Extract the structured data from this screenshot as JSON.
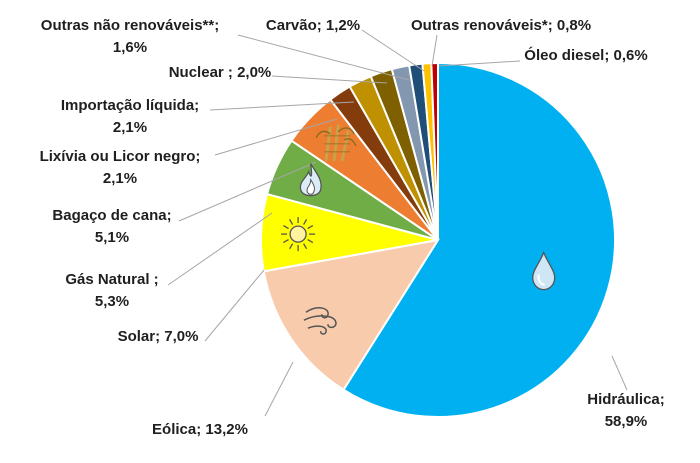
{
  "chart_data": {
    "type": "pie",
    "title": "",
    "legend": "none",
    "slices": [
      {
        "name": "Hidráulica",
        "value": 58.9,
        "label_lines": [
          "Hidráulica;",
          "58,9%"
        ],
        "color": "#00b0f0",
        "icon": "water-drop-icon"
      },
      {
        "name": "Eólica",
        "value": 13.2,
        "label_lines": [
          "Eólica; 13,2%"
        ],
        "color": "#f8cbad",
        "icon": "wind-icon"
      },
      {
        "name": "Solar",
        "value": 7.0,
        "label_lines": [
          "Solar; 7,0%"
        ],
        "color": "#ffff00",
        "icon": "sun-icon"
      },
      {
        "name": "Gás Natural",
        "value": 5.3,
        "label_lines": [
          "Gás Natural ;",
          "5,3%"
        ],
        "color": "#70ad47",
        "icon": "gas-flame-icon"
      },
      {
        "name": "Bagaço de cana",
        "value": 5.1,
        "label_lines": [
          "Bagaço de cana;",
          "5,1%"
        ],
        "color": "#ed7d31",
        "icon": "sugarcane-icon"
      },
      {
        "name": "Lixívia ou Licor negro",
        "value": 2.1,
        "label_lines": [
          "Lixívia ou Licor negro;",
          "2,1%"
        ],
        "color": "#843c0c",
        "icon": ""
      },
      {
        "name": "Importação líquida",
        "value": 2.1,
        "label_lines": [
          "Importação líquida;",
          "2,1%"
        ],
        "color": "#bf9000",
        "icon": ""
      },
      {
        "name": "Nuclear",
        "value": 2.0,
        "label_lines": [
          "Nuclear ; 2,0%"
        ],
        "color": "#7f6000",
        "icon": ""
      },
      {
        "name": "Outras não renováveis**",
        "value": 1.6,
        "label_lines": [
          "Outras não renováveis**;",
          "1,6%"
        ],
        "color": "#8497b0",
        "icon": ""
      },
      {
        "name": "Carvão",
        "value": 1.2,
        "label_lines": [
          "Carvão; 1,2%"
        ],
        "color": "#1f4e79",
        "icon": ""
      },
      {
        "name": "Outras renováveis*",
        "value": 0.8,
        "label_lines": [
          "Outras renováveis*; 0,8%"
        ],
        "color": "#ffc000",
        "icon": ""
      },
      {
        "name": "Óleo diesel",
        "value": 0.6,
        "label_lines": [
          "Óleo diesel; 0,6%"
        ],
        "color": "#c00000",
        "icon": ""
      }
    ]
  }
}
